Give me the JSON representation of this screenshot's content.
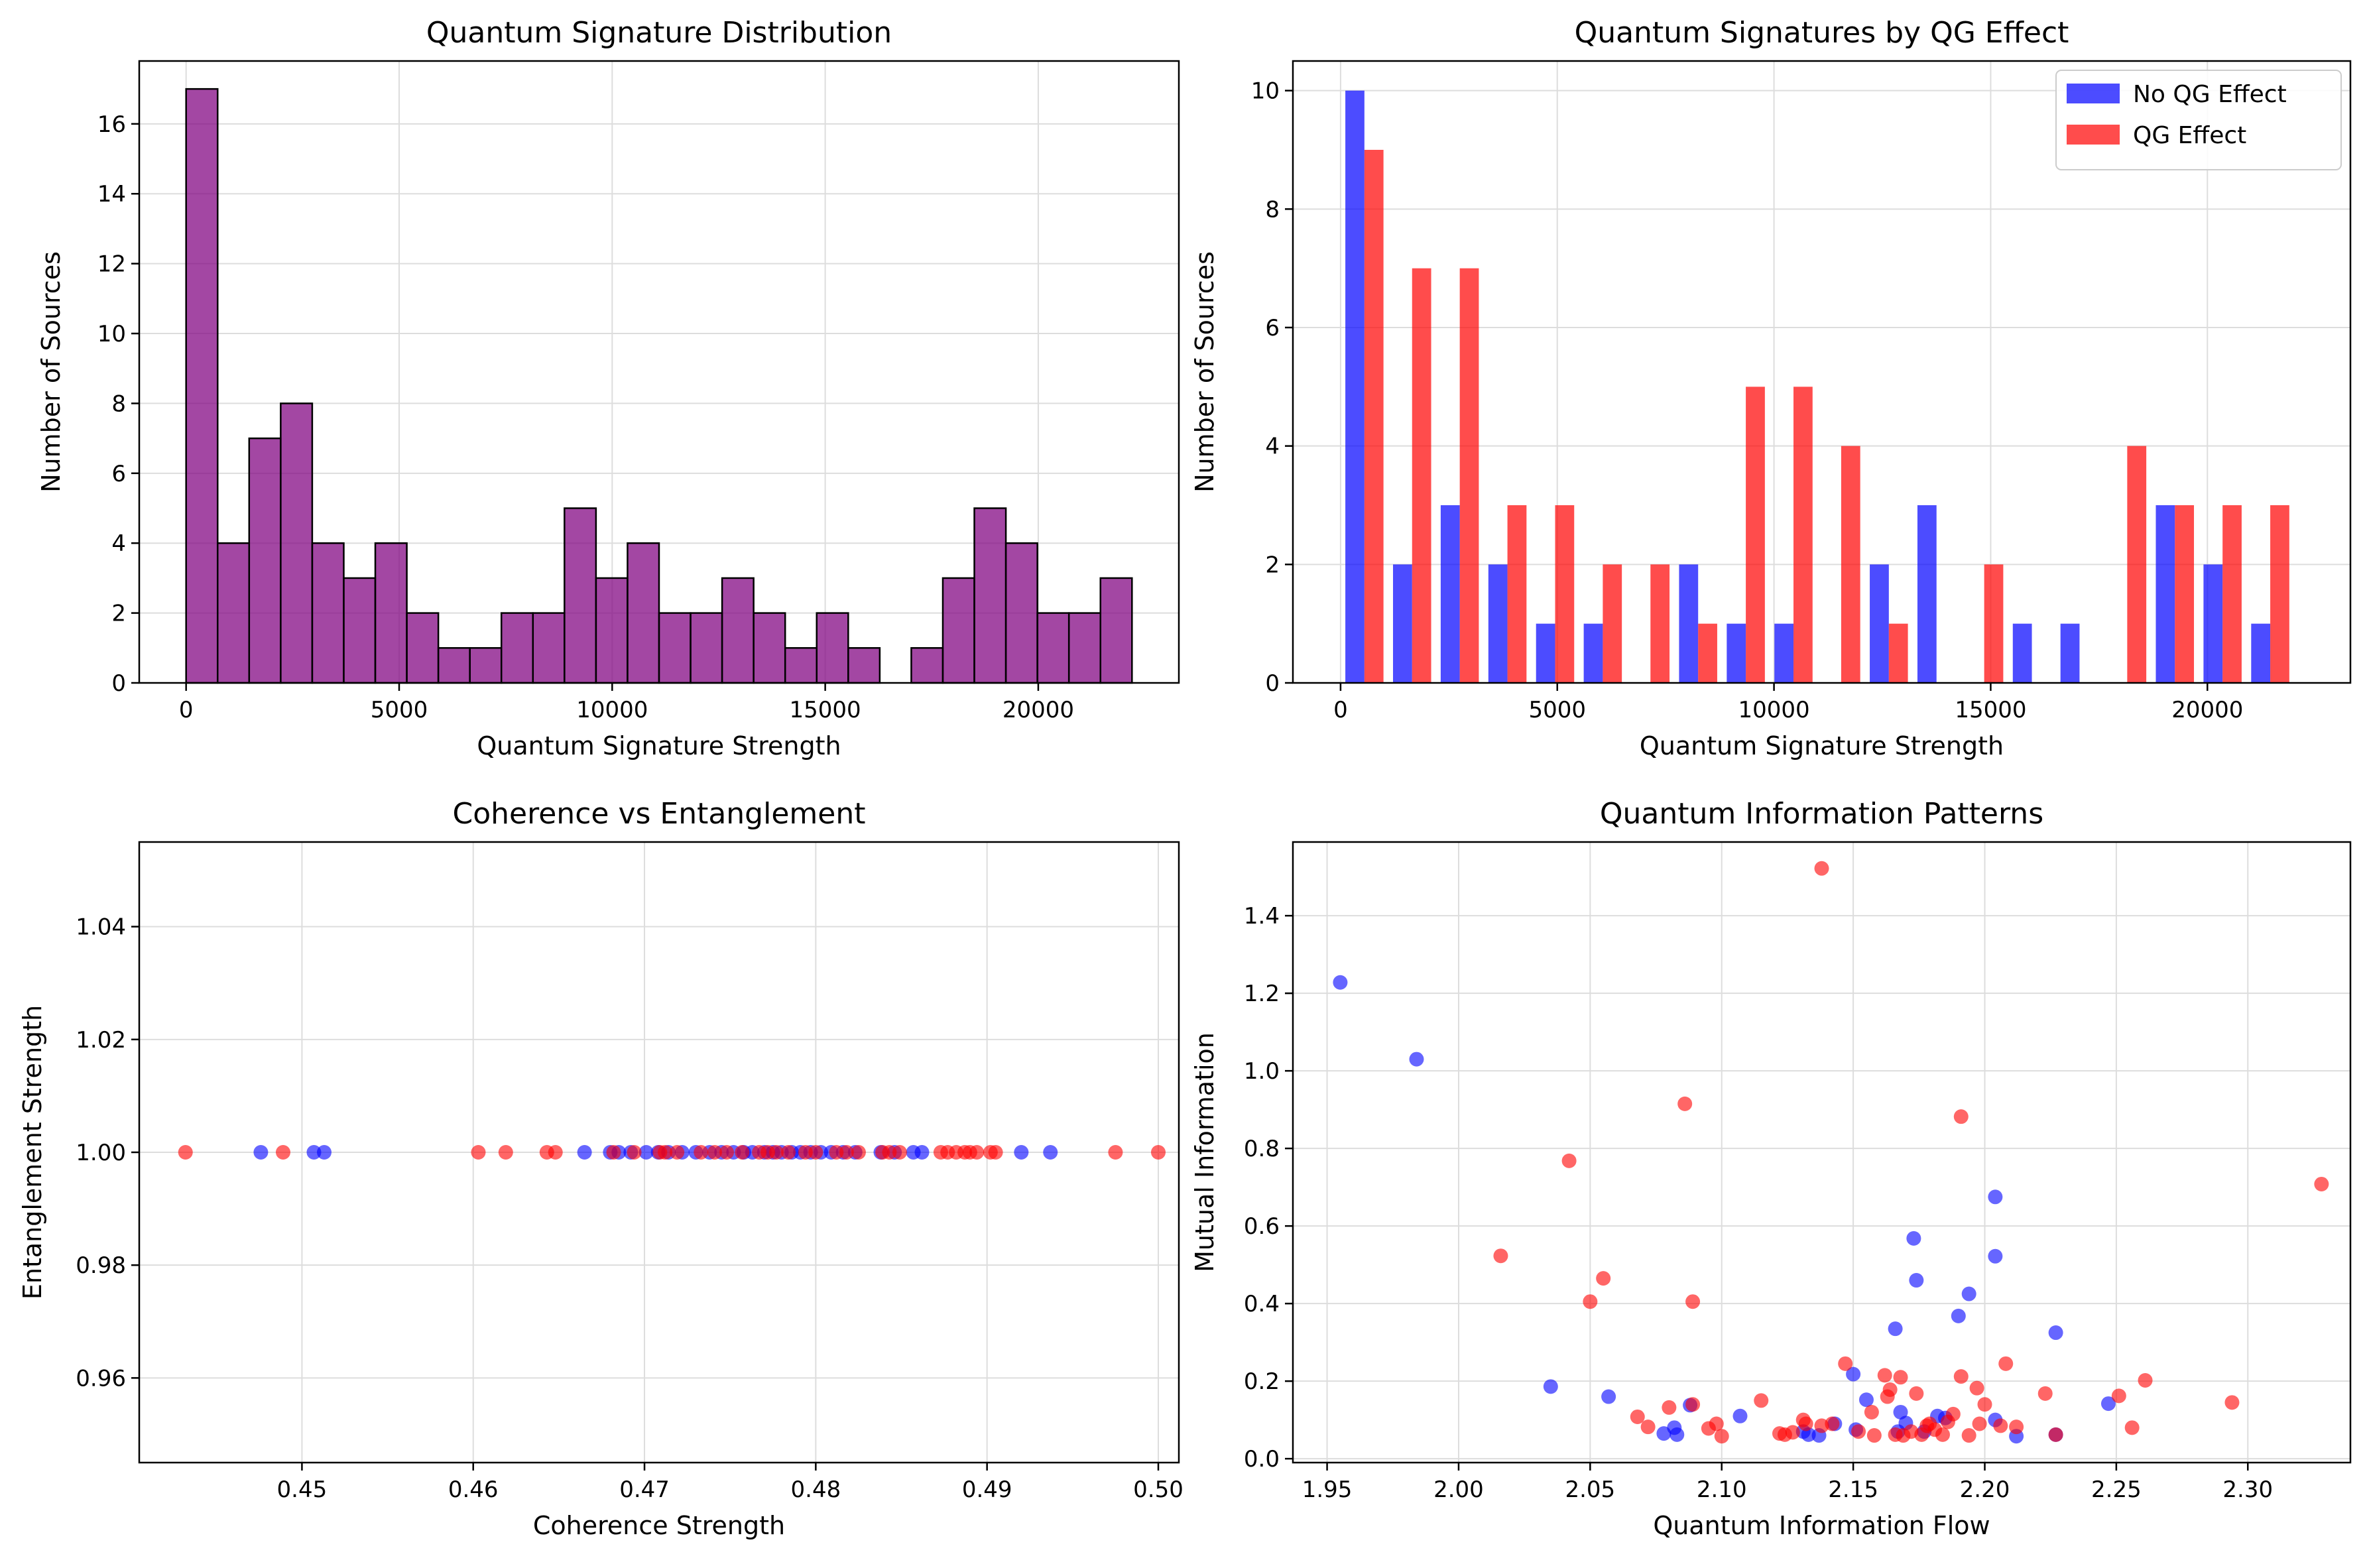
{
  "colors": {
    "purple": "#800080",
    "blue": "#0000ff",
    "red": "#ff0000",
    "edge": "#000000",
    "grid": "#dddddd"
  },
  "chart_data": [
    {
      "type": "bar",
      "title": "Quantum Signature Distribution",
      "xlabel": "Quantum Signature Strength",
      "ylabel": "Number of Sources",
      "xlim": [
        -1100,
        23300
      ],
      "ylim": [
        0,
        17.8
      ],
      "xticks": [
        0,
        5000,
        10000,
        15000,
        20000
      ],
      "yticks": [
        0,
        2,
        4,
        6,
        8,
        10,
        12,
        14,
        16
      ],
      "grid": true,
      "bin_start": 0,
      "bin_width": 740,
      "color": "purple",
      "values": [
        17,
        4,
        7,
        8,
        4,
        3,
        4,
        2,
        1,
        1,
        2,
        2,
        5,
        3,
        4,
        2,
        2,
        3,
        2,
        1,
        2,
        1,
        0,
        1,
        3,
        5,
        4,
        2,
        2,
        3
      ]
    },
    {
      "type": "bar",
      "title": "Quantum Signatures by QG Effect",
      "xlabel": "Quantum Signature Strength",
      "ylabel": "Number of Sources",
      "xlim": [
        -1100,
        23300
      ],
      "ylim": [
        0,
        10.5
      ],
      "xticks": [
        0,
        5000,
        10000,
        15000,
        20000
      ],
      "yticks": [
        0,
        2,
        4,
        6,
        8,
        10
      ],
      "grid": true,
      "legend_position": "top-right",
      "bin_start": 0,
      "bin_width": 1100,
      "series": [
        {
          "name": "No QG Effect",
          "color": "blue",
          "values": [
            10,
            2,
            3,
            2,
            1,
            1,
            0,
            2,
            1,
            1,
            0,
            2,
            3,
            0,
            1,
            1,
            0,
            3,
            2,
            1
          ]
        },
        {
          "name": "QG Effect",
          "color": "red",
          "values": [
            9,
            7,
            7,
            3,
            3,
            2,
            2,
            1,
            5,
            5,
            4,
            1,
            0,
            2,
            0,
            0,
            4,
            3,
            3,
            3
          ]
        }
      ]
    },
    {
      "type": "scatter",
      "title": "Coherence vs Entanglement",
      "xlabel": "Coherence Strength",
      "ylabel": "Entanglement Strength",
      "xlim": [
        0.4405,
        0.5012
      ],
      "ylim": [
        0.945,
        1.055
      ],
      "xticks": [
        0.45,
        0.46,
        0.47,
        0.48,
        0.49,
        0.5
      ],
      "xtick_labels": [
        "0.45",
        "0.46",
        "0.47",
        "0.48",
        "0.49",
        "0.50"
      ],
      "yticks": [
        0.96,
        0.98,
        1.0,
        1.02,
        1.04
      ],
      "ytick_labels": [
        "0.96",
        "0.98",
        "1.00",
        "1.02",
        "1.04"
      ],
      "grid": true,
      "series": [
        {
          "color": "blue",
          "x": [
            0.4476,
            0.4507,
            0.4513,
            0.4665,
            0.468,
            0.4685,
            0.4692,
            0.4701,
            0.4708,
            0.4714,
            0.4722,
            0.473,
            0.4738,
            0.4745,
            0.4752,
            0.4758,
            0.4763,
            0.477,
            0.4775,
            0.478,
            0.4786,
            0.4791,
            0.4797,
            0.4803,
            0.4809,
            0.4816,
            0.4823,
            0.4838,
            0.4846,
            0.4857,
            0.4862,
            0.492,
            0.4937
          ],
          "y": [
            1,
            1,
            1,
            1,
            1,
            1,
            1,
            1,
            1,
            1,
            1,
            1,
            1,
            1,
            1,
            1,
            1,
            1,
            1,
            1,
            1,
            1,
            1,
            1,
            1,
            1,
            1,
            1,
            1,
            1,
            1,
            1,
            1
          ]
        },
        {
          "color": "red",
          "x": [
            0.4432,
            0.4489,
            0.4603,
            0.4619,
            0.4643,
            0.4648,
            0.4682,
            0.4694,
            0.4709,
            0.4712,
            0.4719,
            0.4733,
            0.4741,
            0.4748,
            0.4757,
            0.4767,
            0.4772,
            0.4777,
            0.4784,
            0.4794,
            0.48,
            0.4812,
            0.4818,
            0.4825,
            0.4839,
            0.4843,
            0.4849,
            0.4873,
            0.4877,
            0.4882,
            0.4887,
            0.489,
            0.4894,
            0.4902,
            0.4905,
            0.4975,
            0.5
          ],
          "y": [
            1,
            1,
            1,
            1,
            1,
            1,
            1,
            1,
            1,
            1,
            1,
            1,
            1,
            1,
            1,
            1,
            1,
            1,
            1,
            1,
            1,
            1,
            1,
            1,
            1,
            1,
            1,
            1,
            1,
            1,
            1,
            1,
            1,
            1,
            1,
            1,
            1
          ]
        }
      ]
    },
    {
      "type": "scatter",
      "title": "Quantum Information Patterns",
      "xlabel": "Quantum Information Flow",
      "ylabel": "Mutual Information",
      "xlim": [
        1.937,
        2.339
      ],
      "ylim": [
        -0.01,
        1.59
      ],
      "xticks": [
        1.95,
        2.0,
        2.05,
        2.1,
        2.15,
        2.2,
        2.25,
        2.3
      ],
      "xtick_labels": [
        "1.95",
        "2.00",
        "2.05",
        "2.10",
        "2.15",
        "2.20",
        "2.25",
        "2.30"
      ],
      "yticks": [
        0.0,
        0.2,
        0.4,
        0.6,
        0.8,
        1.0,
        1.2,
        1.4
      ],
      "ytick_labels": [
        "0.0",
        "0.2",
        "0.4",
        "0.6",
        "0.8",
        "1.0",
        "1.2",
        "1.4"
      ],
      "grid": true,
      "series": [
        {
          "color": "blue",
          "x": [
            1.955,
            1.984,
            2.035,
            2.057,
            2.078,
            2.082,
            2.083,
            2.088,
            2.107,
            2.131,
            2.133,
            2.137,
            2.143,
            2.15,
            2.151,
            2.155,
            2.166,
            2.167,
            2.168,
            2.17,
            2.173,
            2.174,
            2.177,
            2.182,
            2.185,
            2.19,
            2.194,
            2.204,
            2.204,
            2.204,
            2.212,
            2.227,
            2.227,
            2.247
          ],
          "y": [
            1.228,
            1.03,
            0.186,
            0.16,
            0.065,
            0.08,
            0.062,
            0.138,
            0.11,
            0.07,
            0.062,
            0.06,
            0.09,
            0.218,
            0.075,
            0.152,
            0.335,
            0.07,
            0.12,
            0.092,
            0.568,
            0.46,
            0.07,
            0.11,
            0.105,
            0.368,
            0.425,
            0.675,
            0.522,
            0.1,
            0.058,
            0.325,
            0.062,
            0.142
          ]
        },
        {
          "color": "red",
          "x": [
            2.016,
            2.042,
            2.05,
            2.055,
            2.068,
            2.072,
            2.08,
            2.086,
            2.089,
            2.089,
            2.095,
            2.098,
            2.1,
            2.115,
            2.122,
            2.124,
            2.127,
            2.131,
            2.132,
            2.138,
            2.138,
            2.142,
            2.147,
            2.152,
            2.157,
            2.158,
            2.162,
            2.163,
            2.164,
            2.166,
            2.168,
            2.169,
            2.172,
            2.174,
            2.176,
            2.178,
            2.179,
            2.181,
            2.184,
            2.186,
            2.188,
            2.191,
            2.191,
            2.194,
            2.197,
            2.198,
            2.2,
            2.206,
            2.208,
            2.212,
            2.223,
            2.227,
            2.251,
            2.256,
            2.261,
            2.294,
            2.328
          ],
          "y": [
            0.523,
            0.768,
            0.405,
            0.465,
            0.108,
            0.082,
            0.132,
            0.915,
            0.405,
            0.14,
            0.078,
            0.09,
            0.058,
            0.15,
            0.065,
            0.062,
            0.068,
            0.1,
            0.09,
            1.522,
            0.085,
            0.09,
            0.245,
            0.07,
            0.12,
            0.06,
            0.215,
            0.16,
            0.178,
            0.062,
            0.21,
            0.06,
            0.07,
            0.168,
            0.062,
            0.085,
            0.09,
            0.075,
            0.062,
            0.095,
            0.115,
            0.882,
            0.212,
            0.06,
            0.182,
            0.09,
            0.14,
            0.085,
            0.245,
            0.082,
            0.168,
            0.062,
            0.162,
            0.08,
            0.202,
            0.145,
            0.708
          ]
        }
      ]
    }
  ]
}
